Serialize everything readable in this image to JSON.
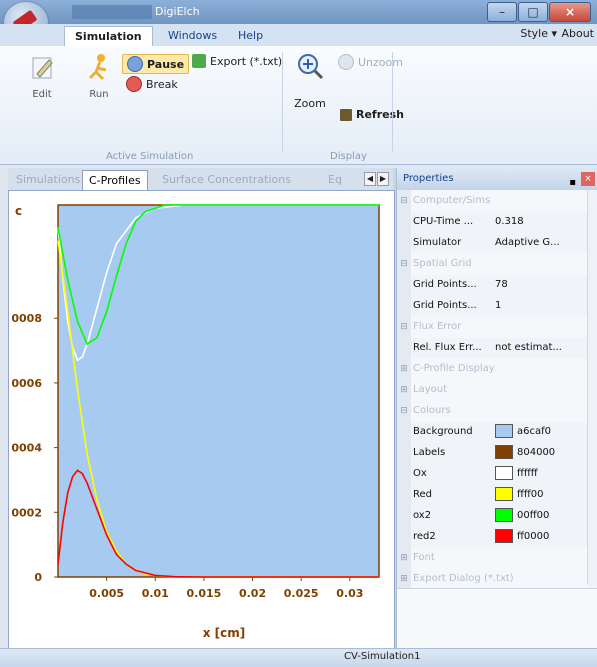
{
  "window": {
    "title": "DigiElch"
  },
  "ribbon": {
    "tabs": [
      "Simulation",
      "Windows",
      "Help"
    ],
    "style_menu": "Style ▾",
    "about_menu": "About",
    "edit_label": "Edit",
    "run_label": "Run",
    "pause_label": "Pause",
    "break_label": "Break",
    "export_label": "Export (*.txt)",
    "active_sim_group": "Active Simulation",
    "zoom_label": "Zoom",
    "unzoom_label": "Unzoom",
    "refresh_label": "Refresh",
    "display_group": "Display"
  },
  "doc_tabs": [
    "Simulations",
    "C-Profiles",
    "Surface Concentrations",
    "Eq"
  ],
  "chart_data": {
    "type": "line",
    "ylabel": "c",
    "xlabel": "x [cm]",
    "x_ticks": [
      "0.005",
      "0.01",
      "0.015",
      "0.02",
      "0.025",
      "0.03"
    ],
    "y_ticks": [
      "0",
      "0002",
      "0004",
      "0006",
      "0008"
    ],
    "xlim": [
      0,
      0.033
    ],
    "ylim": [
      0,
      0.00115
    ],
    "series": [
      {
        "color": "#ffffff",
        "x": [
          0,
          0.0005,
          0.001,
          0.0015,
          0.002,
          0.0025,
          0.003,
          0.004,
          0.005,
          0.006,
          0.008,
          0.01,
          0.013,
          0.016,
          0.033
        ],
        "y": [
          0.00108,
          0.00092,
          0.00079,
          0.00071,
          0.00067,
          0.00068,
          0.00072,
          0.00083,
          0.00094,
          0.00103,
          0.00111,
          0.00114,
          0.00115,
          0.00115,
          0.00115
        ]
      },
      {
        "color": "#ffff00",
        "x": [
          0,
          0.001,
          0.002,
          0.003,
          0.004,
          0.005,
          0.006,
          0.007,
          0.008,
          0.009,
          0.01,
          0.012,
          0.014,
          0.033
        ],
        "y": [
          0.00104,
          0.00082,
          0.00058,
          0.00038,
          0.00024,
          0.00014,
          8e-05,
          4e-05,
          2e-05,
          1e-05,
          4e-06,
          1e-06,
          0,
          0
        ]
      },
      {
        "color": "#00ff00",
        "x": [
          0,
          0.001,
          0.002,
          0.003,
          0.004,
          0.005,
          0.006,
          0.007,
          0.008,
          0.009,
          0.01,
          0.011,
          0.012,
          0.014,
          0.033
        ],
        "y": [
          0.00108,
          0.00092,
          0.00079,
          0.00072,
          0.00074,
          0.00082,
          0.00093,
          0.00103,
          0.0011,
          0.00113,
          0.00114,
          0.00115,
          0.00115,
          0.00115,
          0.00115
        ]
      },
      {
        "color": "#ff0000",
        "x": [
          0,
          0.0005,
          0.001,
          0.0015,
          0.002,
          0.0025,
          0.003,
          0.004,
          0.005,
          0.006,
          0.007,
          0.008,
          0.01,
          0.012,
          0.015,
          0.033
        ],
        "y": [
          4e-05,
          0.00017,
          0.00026,
          0.00031,
          0.00033,
          0.00032,
          0.00029,
          0.00021,
          0.00013,
          7e-05,
          4e-05,
          2e-05,
          5e-06,
          1e-06,
          0,
          0
        ]
      }
    ]
  },
  "properties": {
    "title": "Properties",
    "pin": "▪",
    "close": "×",
    "rows": [
      {
        "kind": "cat",
        "toggle": "⊟",
        "name": "Computer/Sims"
      },
      {
        "kind": "prop",
        "name": "CPU-Time ...",
        "value": "0.318"
      },
      {
        "kind": "prop",
        "name": "Simulator",
        "value": "Adaptive G..."
      },
      {
        "kind": "cat",
        "toggle": "⊟",
        "name": "Spatial Grid"
      },
      {
        "kind": "prop",
        "name": "Grid Points...",
        "value": "78"
      },
      {
        "kind": "prop",
        "name": "Grid Points...",
        "value": "1"
      },
      {
        "kind": "cat",
        "toggle": "⊟",
        "name": "Flux Error"
      },
      {
        "kind": "prop",
        "name": "Rel. Flux Err...",
        "value": "not estimat..."
      },
      {
        "kind": "cat",
        "toggle": "⊞",
        "name": "C-Profile Display"
      },
      {
        "kind": "cat",
        "toggle": "⊞",
        "name": "Layout"
      },
      {
        "kind": "cat",
        "toggle": "⊟",
        "name": "Colours"
      },
      {
        "kind": "color",
        "name": "Background",
        "value": "a6caf0",
        "swatch": "#a6caf0"
      },
      {
        "kind": "color",
        "name": "Labels",
        "value": "804000",
        "swatch": "#804000"
      },
      {
        "kind": "color",
        "name": "Ox",
        "value": "ffffff",
        "swatch": "#ffffff"
      },
      {
        "kind": "color",
        "name": "Red",
        "value": "ffff00",
        "swatch": "#ffff00"
      },
      {
        "kind": "color",
        "name": "ox2",
        "value": "00ff00",
        "swatch": "#00ff00"
      },
      {
        "kind": "color",
        "name": "red2",
        "value": "ff0000",
        "swatch": "#ff0000"
      },
      {
        "kind": "cat",
        "toggle": "⊞",
        "name": "Font"
      },
      {
        "kind": "cat",
        "toggle": "⊞",
        "name": "Export Dialog (*.txt)"
      }
    ]
  },
  "status": {
    "text": "CV-Simulation1"
  }
}
